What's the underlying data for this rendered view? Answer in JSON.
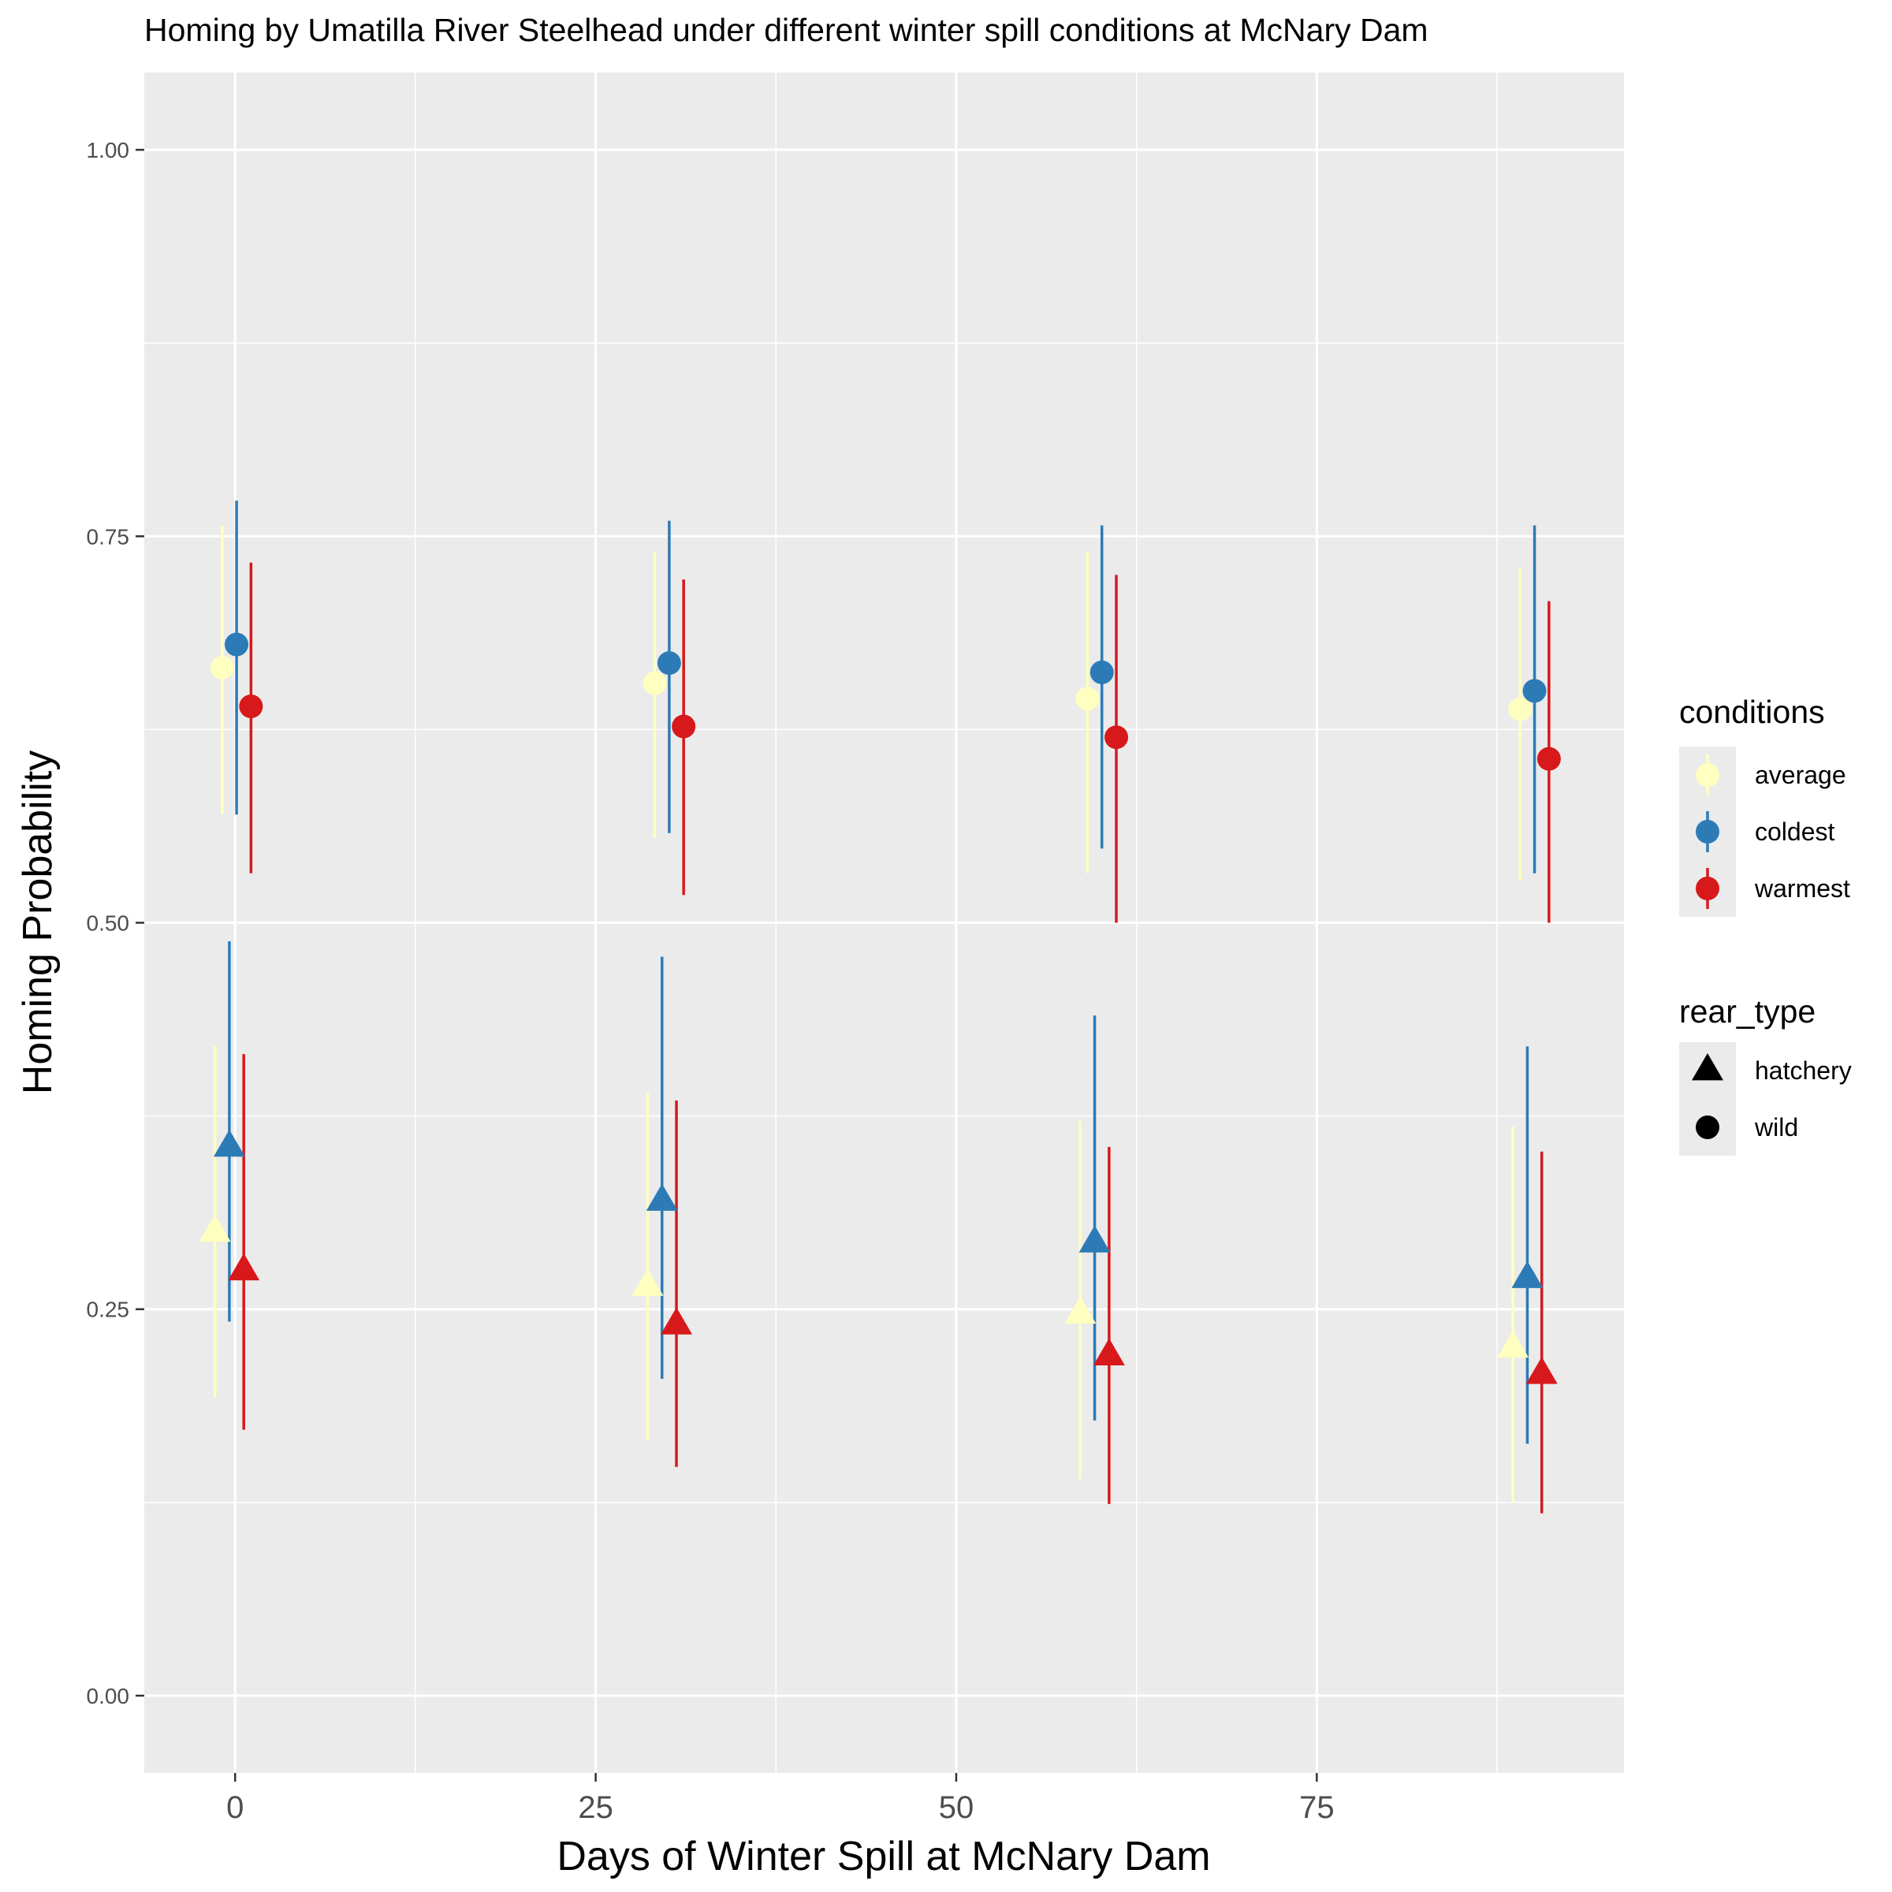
{
  "chart_data": {
    "type": "scatter",
    "title": "Homing by Umatilla River Steelhead under different winter spill conditions at McNary Dam",
    "xlabel": "Days of Winter Spill at McNary Dam",
    "ylabel": "Homing Probability",
    "xlim": [
      -6.3,
      96.3
    ],
    "ylim": [
      -0.05,
      1.05
    ],
    "x_ticks": [
      0,
      25,
      50,
      75
    ],
    "x_tick_labels": [
      "0",
      "25",
      "50",
      "75"
    ],
    "y_ticks": [
      0,
      0.25,
      0.5,
      0.75,
      1
    ],
    "y_tick_labels": [
      "0.00",
      "0.25",
      "0.50",
      "0.75",
      "1.00"
    ],
    "grid": true,
    "legend_placement": "right",
    "legends": {
      "conditions": {
        "title": "conditions",
        "entries": [
          {
            "label": "average",
            "color": "#FFFFBF"
          },
          {
            "label": "coldest",
            "color": "#2C7BB6"
          },
          {
            "label": "warmest",
            "color": "#D7191C"
          }
        ]
      },
      "rear_type": {
        "title": "rear_type",
        "entries": [
          {
            "label": "hatchery",
            "shape": "triangle"
          },
          {
            "label": "wild",
            "shape": "circle"
          }
        ]
      }
    },
    "series": [
      {
        "condition": "average",
        "rear_type": "wild",
        "color": "#FFFFBF",
        "shape": "circle",
        "x": [
          -0.9,
          29.1,
          59.1,
          89.1
        ],
        "y": [
          0.665,
          0.655,
          0.645,
          0.638
        ],
        "lower": [
          0.57,
          0.555,
          0.532,
          0.527
        ],
        "upper": [
          0.757,
          0.74,
          0.74,
          0.73
        ]
      },
      {
        "condition": "coldest",
        "rear_type": "wild",
        "color": "#2C7BB6",
        "shape": "circle",
        "x": [
          0.1,
          30.1,
          60.1,
          90.1
        ],
        "y": [
          0.68,
          0.668,
          0.662,
          0.65
        ],
        "lower": [
          0.57,
          0.558,
          0.548,
          0.532
        ],
        "upper": [
          0.773,
          0.76,
          0.757,
          0.757
        ]
      },
      {
        "condition": "warmest",
        "rear_type": "wild",
        "color": "#D7191C",
        "shape": "circle",
        "x": [
          1.1,
          31.1,
          61.1,
          91.1
        ],
        "y": [
          0.64,
          0.627,
          0.62,
          0.606
        ],
        "lower": [
          0.532,
          0.518,
          0.5,
          0.5
        ],
        "upper": [
          0.733,
          0.722,
          0.725,
          0.708
        ]
      },
      {
        "condition": "average",
        "rear_type": "hatchery",
        "color": "#FFFFBF",
        "shape": "triangle",
        "x": [
          -1.4,
          28.6,
          58.6,
          88.6
        ],
        "y": [
          0.3,
          0.265,
          0.247,
          0.225
        ],
        "lower": [
          0.193,
          0.165,
          0.14,
          0.125
        ],
        "upper": [
          0.42,
          0.39,
          0.372,
          0.368
        ]
      },
      {
        "condition": "coldest",
        "rear_type": "hatchery",
        "color": "#2C7BB6",
        "shape": "triangle",
        "x": [
          -0.4,
          29.6,
          59.6,
          89.6
        ],
        "y": [
          0.355,
          0.32,
          0.293,
          0.27
        ],
        "lower": [
          0.242,
          0.205,
          0.178,
          0.163
        ],
        "upper": [
          0.488,
          0.478,
          0.44,
          0.42
        ]
      },
      {
        "condition": "warmest",
        "rear_type": "hatchery",
        "color": "#D7191C",
        "shape": "triangle",
        "x": [
          0.6,
          30.6,
          60.6,
          90.6
        ],
        "y": [
          0.275,
          0.24,
          0.22,
          0.208
        ],
        "lower": [
          0.172,
          0.148,
          0.124,
          0.118
        ],
        "upper": [
          0.415,
          0.385,
          0.355,
          0.352
        ]
      }
    ]
  }
}
